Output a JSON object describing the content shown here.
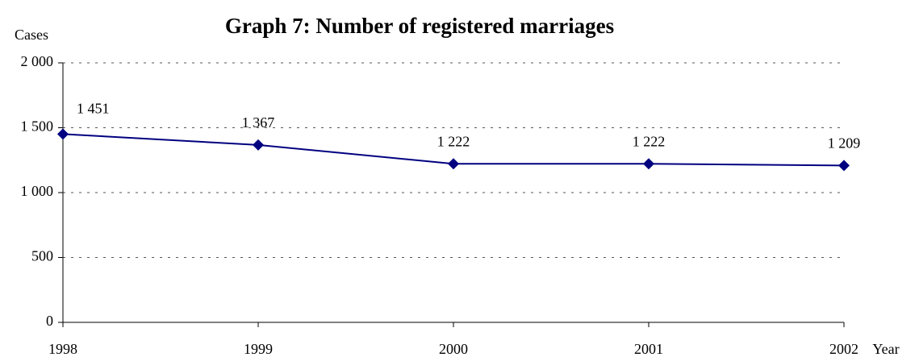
{
  "chart_data": {
    "type": "line",
    "title": "Graph 7: Number of registered marriages",
    "y_label": "Cases",
    "x_label": "Year",
    "categories": [
      "1998",
      "1999",
      "2000",
      "2001",
      "2002"
    ],
    "series": [
      {
        "name": "Registered marriages",
        "color": "#000080",
        "values": [
          1451,
          1367,
          1222,
          1222,
          1209
        ],
        "value_labels": [
          "1 451",
          "1 367",
          "1 222",
          "1 222",
          "1 209"
        ]
      }
    ],
    "ylim": [
      0,
      2000
    ],
    "yticks": [
      0,
      500,
      {
        "value": 1000,
        "label": "1 000"
      },
      {
        "value": 1500,
        "label": "1 500"
      },
      {
        "value": 2000,
        "label": "2 000"
      }
    ],
    "grid": true
  }
}
